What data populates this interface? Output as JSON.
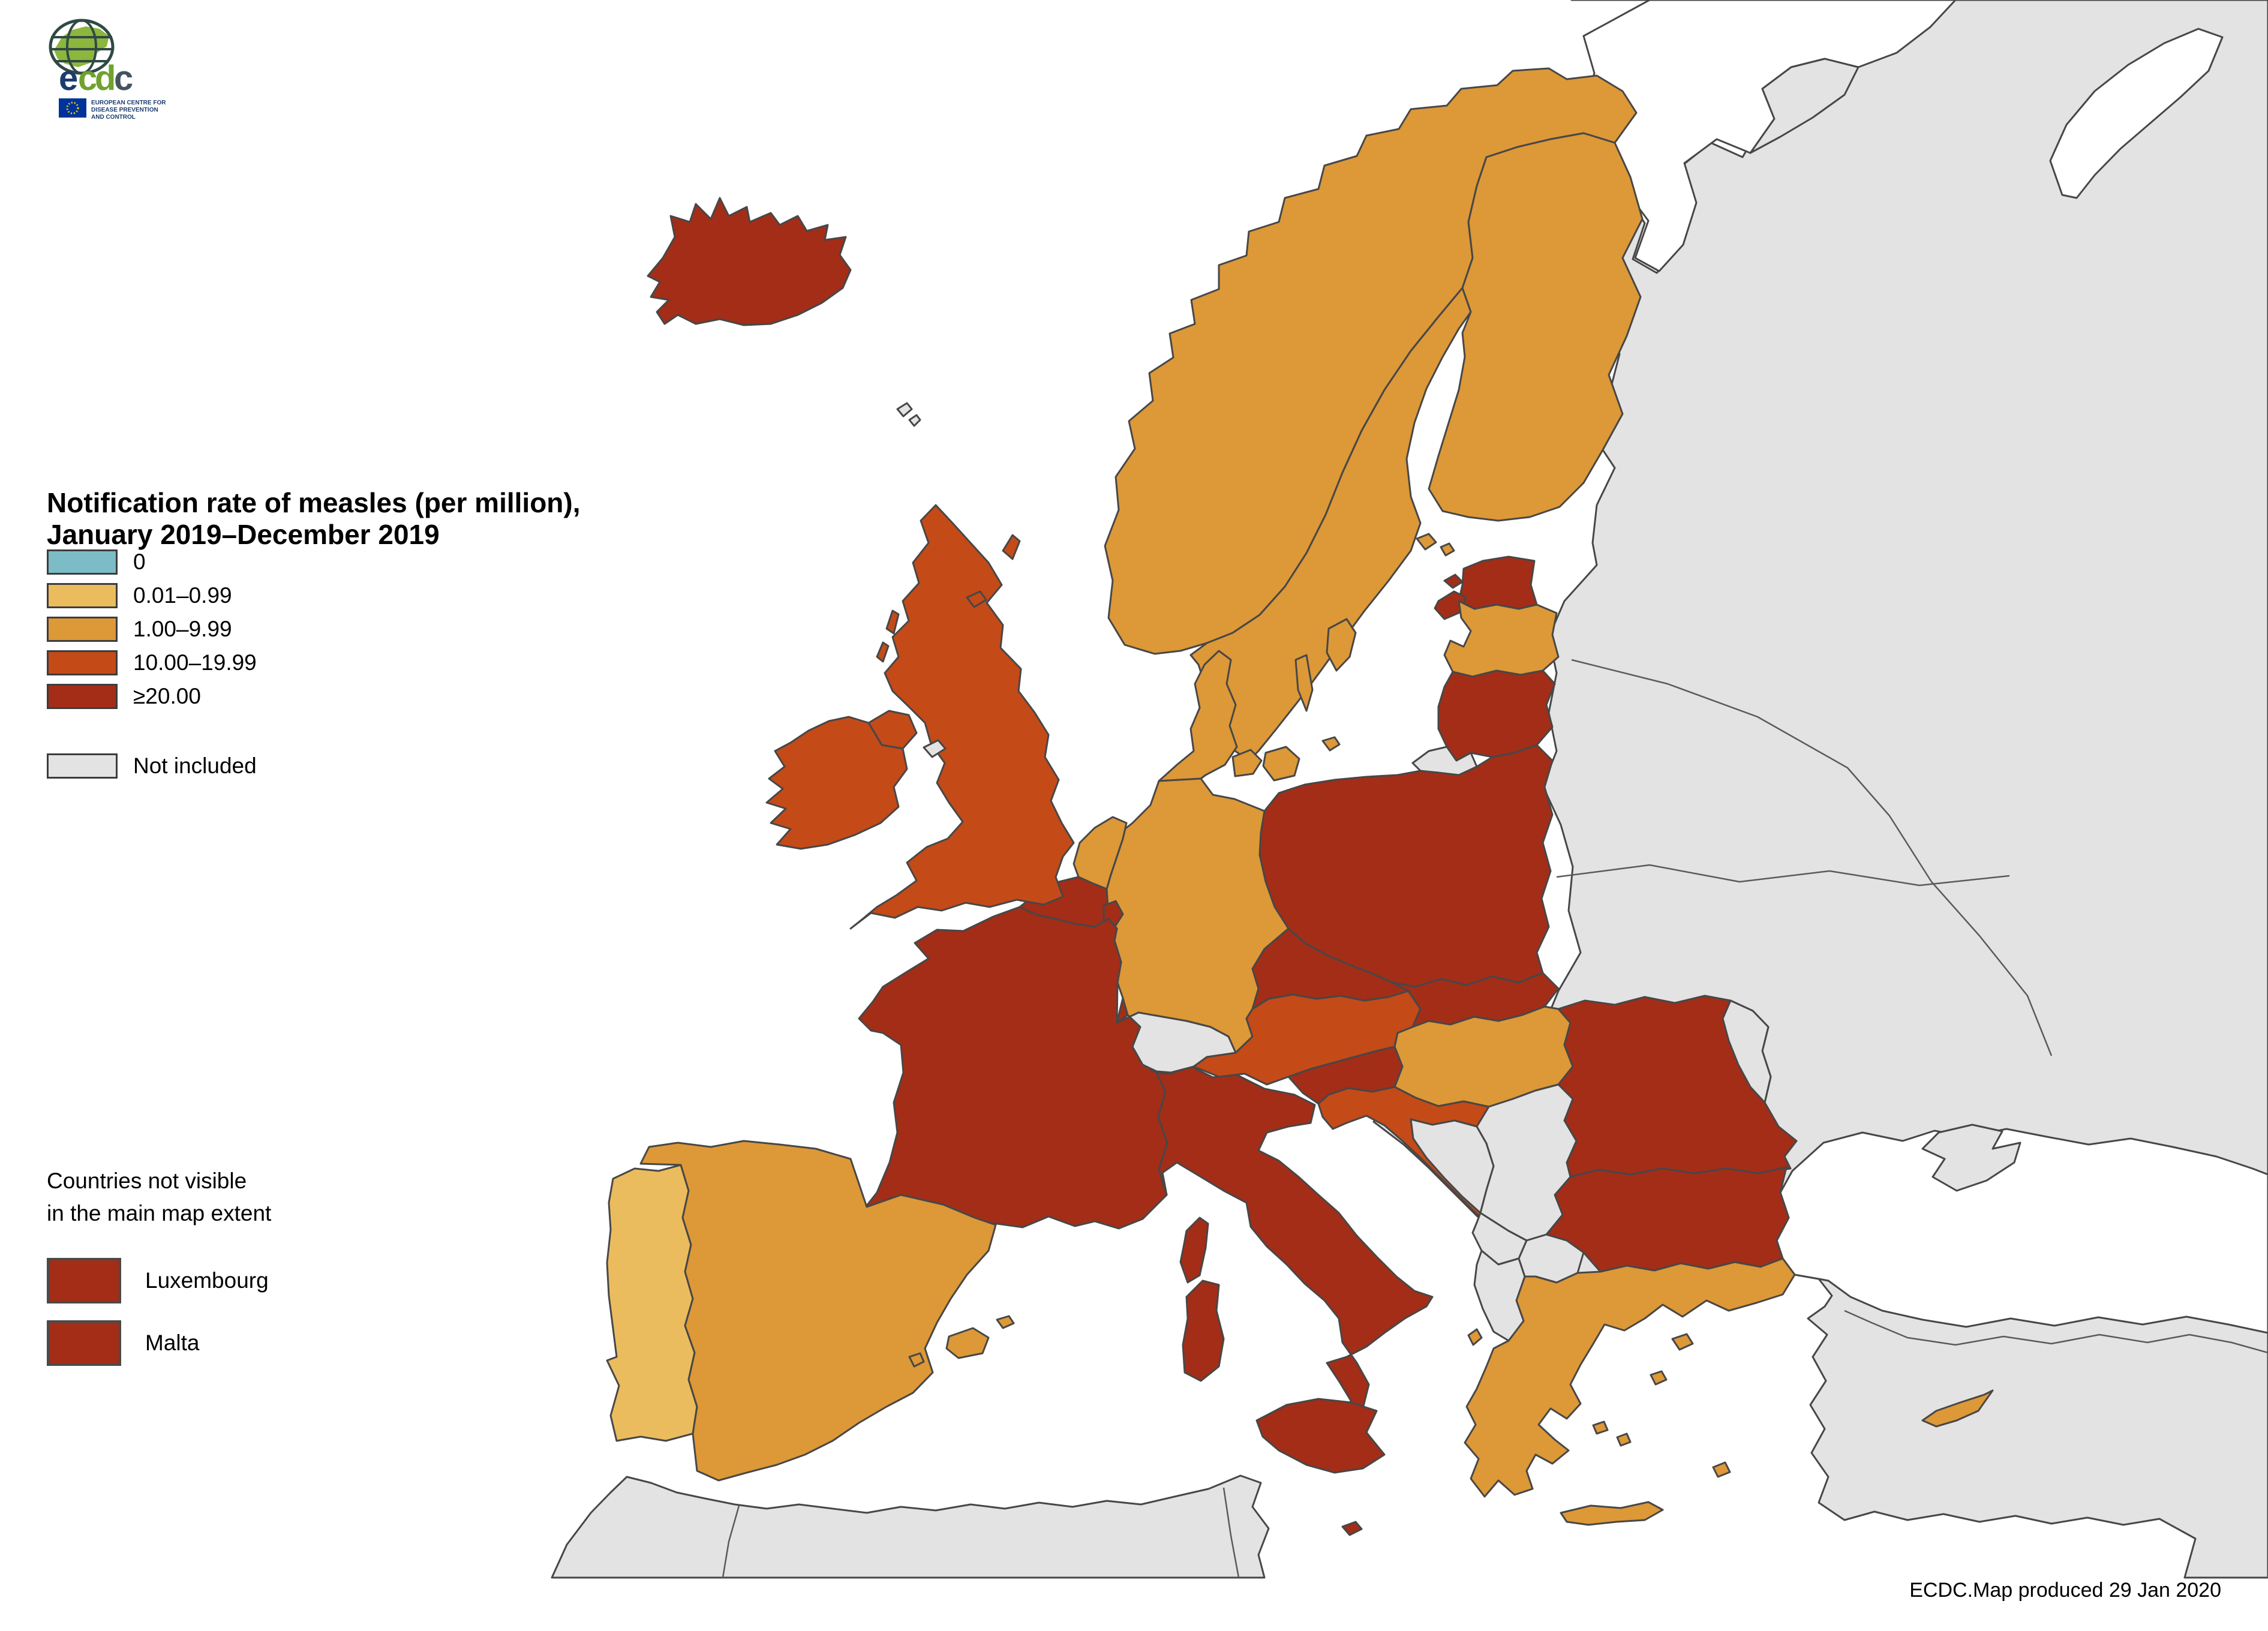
{
  "title": {
    "line1": "Notification rate of measles (per million),",
    "line2": "January 2019–December 2019"
  },
  "legend": {
    "classes": [
      {
        "id": "zero",
        "label": "0",
        "color": "#7BBCC6"
      },
      {
        "id": "low",
        "label": "0.01–0.99",
        "color": "#EBBC5E"
      },
      {
        "id": "mid",
        "label": "1.00–9.99",
        "color": "#DD9837"
      },
      {
        "id": "high",
        "label": "10.00–19.99",
        "color": "#C44A18"
      },
      {
        "id": "veryhigh",
        "label": "≥20.00",
        "color": "#A42D18"
      }
    ],
    "not_included": {
      "id": "not_included",
      "label": "Not included",
      "color": "#E3E3E3"
    }
  },
  "sub_legend": {
    "heading_line1": "Countries not visible",
    "heading_line2": "in the main map extent",
    "items": [
      {
        "label": "Luxembourg",
        "category": "veryhigh"
      },
      {
        "label": "Malta",
        "category": "veryhigh"
      }
    ]
  },
  "attribution": "ECDC.Map produced 29 Jan 2020",
  "logo": {
    "wordmark": "ecdc",
    "org_line1": "EUROPEAN CENTRE FOR",
    "org_line2": "DISEASE PREVENTION",
    "org_line3": "AND CONTROL",
    "globe_green": "#8CB63C",
    "navy": "#1B3C6E",
    "green": "#6FA22E",
    "flag_blue": "#003399",
    "star_yellow": "#FFCC00"
  },
  "map": {
    "sea_color": "#FFFFFF",
    "not_included_color": "#E3E3E3",
    "border_color": "#474747",
    "countries": [
      {
        "name": "Iceland",
        "category": "veryhigh",
        "shapes": [
          "iceland"
        ]
      },
      {
        "name": "Norway",
        "category": "mid",
        "shapes": [
          "norway"
        ]
      },
      {
        "name": "Sweden",
        "category": "mid",
        "shapes": [
          "sweden",
          "sweden_gotland",
          "sweden_oland"
        ]
      },
      {
        "name": "Finland",
        "category": "mid",
        "shapes": [
          "finland",
          "aland_a",
          "aland_b"
        ]
      },
      {
        "name": "Denmark",
        "category": "mid",
        "shapes": [
          "denmark",
          "denmark_funen",
          "denmark_zealand",
          "denmark_bornholm"
        ]
      },
      {
        "name": "Estonia",
        "category": "veryhigh",
        "shapes": [
          "estonia",
          "saaremaa",
          "hiiumaa"
        ]
      },
      {
        "name": "Latvia",
        "category": "mid",
        "shapes": [
          "latvia"
        ]
      },
      {
        "name": "Lithuania",
        "category": "veryhigh",
        "shapes": [
          "lithuania"
        ]
      },
      {
        "name": "Poland",
        "category": "veryhigh",
        "shapes": [
          "poland"
        ]
      },
      {
        "name": "Germany",
        "category": "mid",
        "shapes": [
          "germany"
        ]
      },
      {
        "name": "Netherlands",
        "category": "mid",
        "shapes": [
          "netherlands"
        ]
      },
      {
        "name": "Belgium",
        "category": "veryhigh",
        "shapes": [
          "belgium"
        ]
      },
      {
        "name": "Luxembourg",
        "category": "veryhigh",
        "shapes": [
          "luxembourg"
        ]
      },
      {
        "name": "France",
        "category": "veryhigh",
        "shapes": [
          "france",
          "corsica"
        ]
      },
      {
        "name": "United Kingdom",
        "category": "high",
        "shapes": [
          "uk_gb",
          "uk_ni",
          "uk_shetland",
          "uk_orkney",
          "uk_hebride_a",
          "uk_hebride_b"
        ]
      },
      {
        "name": "Ireland",
        "category": "high",
        "shapes": [
          "ireland"
        ]
      },
      {
        "name": "Portugal",
        "category": "low",
        "shapes": [
          "portugal"
        ]
      },
      {
        "name": "Spain",
        "category": "mid",
        "shapes": [
          "spain",
          "mallorca",
          "menorca",
          "ibiza"
        ]
      },
      {
        "name": "Italy",
        "category": "veryhigh",
        "shapes": [
          "italy",
          "sicily",
          "sardinia"
        ]
      },
      {
        "name": "Malta",
        "category": "veryhigh",
        "shapes": [
          "malta"
        ]
      },
      {
        "name": "Austria",
        "category": "high",
        "shapes": [
          "austria"
        ]
      },
      {
        "name": "Czechia",
        "category": "veryhigh",
        "shapes": [
          "czechia"
        ]
      },
      {
        "name": "Slovakia",
        "category": "veryhigh",
        "shapes": [
          "slovakia"
        ]
      },
      {
        "name": "Hungary",
        "category": "mid",
        "shapes": [
          "hungary"
        ]
      },
      {
        "name": "Slovenia",
        "category": "veryhigh",
        "shapes": [
          "slovenia"
        ]
      },
      {
        "name": "Croatia",
        "category": "high",
        "shapes": [
          "croatia"
        ]
      },
      {
        "name": "Romania",
        "category": "veryhigh",
        "shapes": [
          "romania"
        ]
      },
      {
        "name": "Bulgaria",
        "category": "veryhigh",
        "shapes": [
          "bulgaria"
        ]
      },
      {
        "name": "Greece",
        "category": "mid",
        "shapes": [
          "greece",
          "crete",
          "corfu",
          "isl_lesbos",
          "isl_chios",
          "isl_cyc_a",
          "isl_cyc_b",
          "isl_rhodes"
        ]
      },
      {
        "name": "Cyprus",
        "category": "mid",
        "shapes": [
          "cyprus"
        ]
      },
      {
        "name": "Switzerland",
        "category": "not_included",
        "shapes": [
          "switzerland"
        ]
      },
      {
        "name": "Bosnia and Herzegovina",
        "category": "not_included",
        "shapes": [
          "bosnia"
        ]
      },
      {
        "name": "Serbia",
        "category": "not_included",
        "shapes": [
          "serbia"
        ]
      },
      {
        "name": "Montenegro",
        "category": "not_included",
        "shapes": [
          "montenegro"
        ]
      },
      {
        "name": "Albania",
        "category": "not_included",
        "shapes": [
          "albania"
        ]
      },
      {
        "name": "North Macedonia",
        "category": "not_included",
        "shapes": [
          "north_macedonia"
        ]
      },
      {
        "name": "Moldova",
        "category": "not_included",
        "shapes": [
          "moldova"
        ]
      },
      {
        "name": "Kaliningrad (Russia)",
        "category": "not_included",
        "shapes": [
          "kaliningrad"
        ]
      },
      {
        "name": "Isle of Man",
        "category": "not_included",
        "shapes": [
          "isle_of_man"
        ]
      },
      {
        "name": "Faroe Islands",
        "category": "not_included",
        "shapes": [
          "faroe_a",
          "faroe_b"
        ]
      }
    ],
    "not_included_regions": [
      "Russia",
      "Belarus",
      "Ukraine",
      "Turkey",
      "Morocco",
      "Algeria",
      "Tunisia",
      "Kosovo",
      "Andorra",
      "Liechtenstein",
      "San Marino"
    ]
  }
}
